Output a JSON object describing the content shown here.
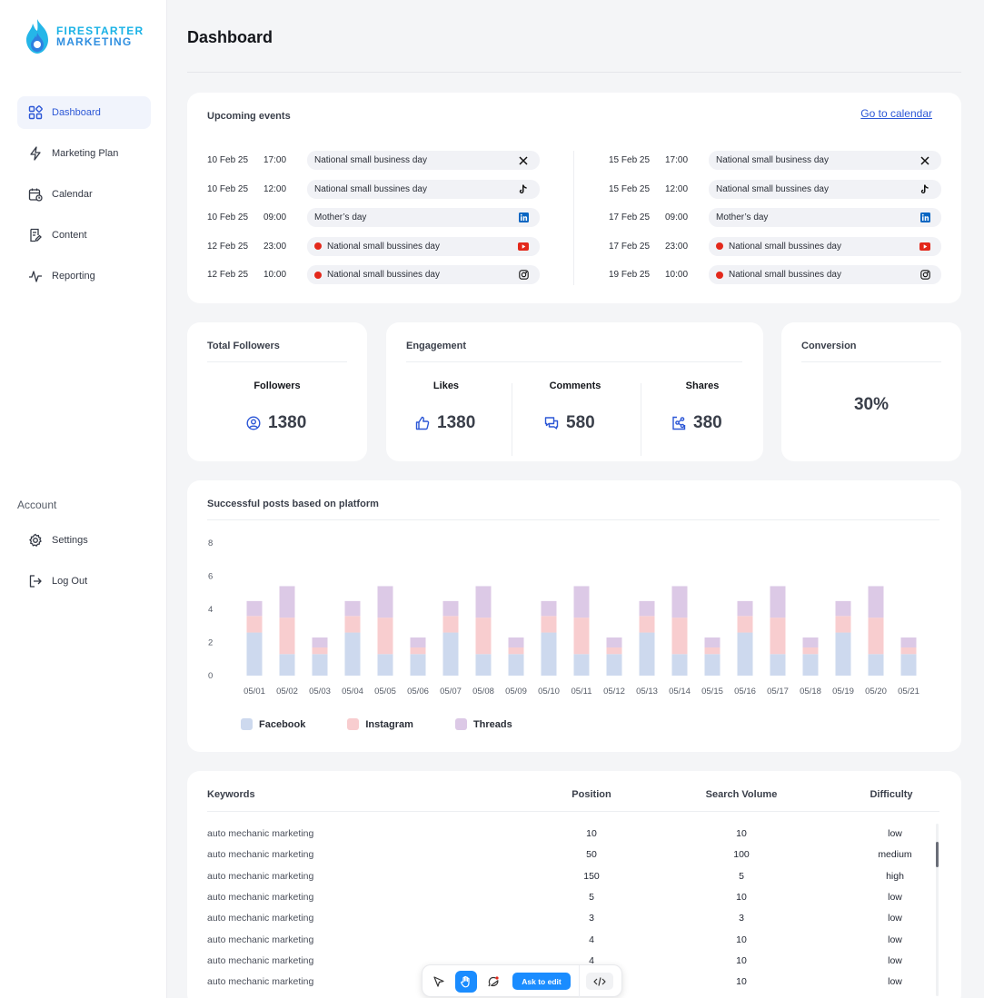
{
  "brand": {
    "line1": "FIRESTARTER",
    "line2": "MARKETING"
  },
  "colors": {
    "accent": "#2c57d6",
    "facebook": "#cdd9ee",
    "instagram": "#f8cdcf",
    "threads": "#dcc9e6",
    "youtube_dot": "#e3281b"
  },
  "sidebar": {
    "items": [
      {
        "label": "Dashboard",
        "icon": "dashboard-icon",
        "active": true
      },
      {
        "label": "Marketing Plan",
        "icon": "bolt-icon"
      },
      {
        "label": "Calendar",
        "icon": "calendar-icon"
      },
      {
        "label": "Content",
        "icon": "content-icon"
      },
      {
        "label": "Reporting",
        "icon": "pulse-icon"
      }
    ],
    "account_title": "Account",
    "account_items": [
      {
        "label": "Settings",
        "icon": "gear-icon"
      },
      {
        "label": "Log Out",
        "icon": "logout-icon"
      }
    ]
  },
  "page_title": "Dashboard",
  "events": {
    "title": "Upcoming events",
    "link": "Go to calendar",
    "left": [
      {
        "date": "10 Feb 25",
        "time": "17:00",
        "name": "National small business day",
        "platform": "x-icon",
        "dot": false
      },
      {
        "date": "10 Feb 25",
        "time": "12:00",
        "name": "National small bussines day",
        "platform": "tiktok-icon",
        "dot": false
      },
      {
        "date": "10 Feb 25",
        "time": "09:00",
        "name": "Mother’s day",
        "platform": "linkedin-icon",
        "dot": false
      },
      {
        "date": "12 Feb 25",
        "time": "23:00",
        "name": "National small bussines day",
        "platform": "youtube-icon",
        "dot": true
      },
      {
        "date": "12 Feb 25",
        "time": "10:00",
        "name": "National small bussines day",
        "platform": "instagram-icon",
        "dot": true
      }
    ],
    "right": [
      {
        "date": "15 Feb 25",
        "time": "17:00",
        "name": "National small business day",
        "platform": "x-icon",
        "dot": false
      },
      {
        "date": "15 Feb 25",
        "time": "12:00",
        "name": "National small bussines day",
        "platform": "tiktok-icon",
        "dot": false
      },
      {
        "date": "17 Feb 25",
        "time": "09:00",
        "name": "Mother’s day",
        "platform": "linkedin-icon",
        "dot": false
      },
      {
        "date": "17 Feb 25",
        "time": "23:00",
        "name": "National small bussines day",
        "platform": "youtube-icon",
        "dot": true
      },
      {
        "date": "19 Feb 25",
        "time": "10:00",
        "name": "National small bussines day",
        "platform": "instagram-icon",
        "dot": true
      }
    ]
  },
  "followers": {
    "title": "Total Followers",
    "label": "Followers",
    "value": "1380",
    "icon": "user-circle-icon"
  },
  "engagement": {
    "title": "Engagement",
    "metrics": [
      {
        "label": "Likes",
        "value": "1380",
        "icon": "thumbs-up-icon"
      },
      {
        "label": "Comments",
        "value": "580",
        "icon": "comments-icon"
      },
      {
        "label": "Shares",
        "value": "380",
        "icon": "share-icon"
      }
    ]
  },
  "conversion": {
    "title": "Conversion",
    "value": "30%"
  },
  "chart_title": "Successful posts based on platform",
  "chart_data": {
    "type": "bar",
    "stacked": true,
    "title": "Successful posts based on platform",
    "categories": [
      "05/01",
      "05/02",
      "05/03",
      "05/04",
      "05/05",
      "05/06",
      "05/07",
      "05/08",
      "05/09",
      "05/10",
      "05/11",
      "05/12",
      "05/13",
      "05/14",
      "05/15",
      "05/16",
      "05/17",
      "05/18",
      "05/19",
      "05/20",
      "05/21"
    ],
    "series": [
      {
        "name": "Facebook",
        "color": "#cdd9ee",
        "values": [
          2.6,
          1.3,
          1.3,
          2.6,
          1.3,
          1.3,
          2.6,
          1.3,
          1.3,
          2.6,
          1.3,
          1.3,
          2.6,
          1.3,
          1.3,
          2.6,
          1.3,
          1.3,
          2.6,
          1.3,
          1.3
        ]
      },
      {
        "name": "Instagram",
        "color": "#f8cdcf",
        "values": [
          1.0,
          2.2,
          0.4,
          1.0,
          2.2,
          0.4,
          1.0,
          2.2,
          0.4,
          1.0,
          2.2,
          0.4,
          1.0,
          2.2,
          0.4,
          1.0,
          2.2,
          0.4,
          1.0,
          2.2,
          0.4
        ]
      },
      {
        "name": "Threads",
        "color": "#dcc9e6",
        "values": [
          0.9,
          1.9,
          0.6,
          0.9,
          1.9,
          0.6,
          0.9,
          1.9,
          0.6,
          0.9,
          1.9,
          0.6,
          0.9,
          1.9,
          0.6,
          0.9,
          1.9,
          0.6,
          0.9,
          1.9,
          0.6
        ]
      }
    ],
    "yticks": [
      "0",
      "2",
      "4",
      "6",
      "8"
    ],
    "ylim": [
      0,
      8
    ],
    "grid": false,
    "legend": "bottom-left"
  },
  "keywords": {
    "headers": {
      "keyword": "Keywords",
      "position": "Position",
      "volume": "Search Volume",
      "difficulty": "Difficulty"
    },
    "rows": [
      {
        "keyword": "auto mechanic marketing",
        "position": "10",
        "volume": "10",
        "difficulty": "low"
      },
      {
        "keyword": "auto mechanic marketing",
        "position": "50",
        "volume": "100",
        "difficulty": "medium"
      },
      {
        "keyword": "auto mechanic marketing",
        "position": "150",
        "volume": "5",
        "difficulty": "high"
      },
      {
        "keyword": "auto mechanic marketing",
        "position": "5",
        "volume": "10",
        "difficulty": "low"
      },
      {
        "keyword": "auto mechanic marketing",
        "position": "3",
        "volume": "3",
        "difficulty": "low"
      },
      {
        "keyword": "auto mechanic marketing",
        "position": "4",
        "volume": "10",
        "difficulty": "low"
      },
      {
        "keyword": "auto mechanic marketing",
        "position": "4",
        "volume": "10",
        "difficulty": "low"
      },
      {
        "keyword": "auto mechanic marketing",
        "position": "4",
        "volume": "10",
        "difficulty": "low"
      }
    ]
  },
  "toolbar": {
    "ask_label": "Ask to edit"
  }
}
